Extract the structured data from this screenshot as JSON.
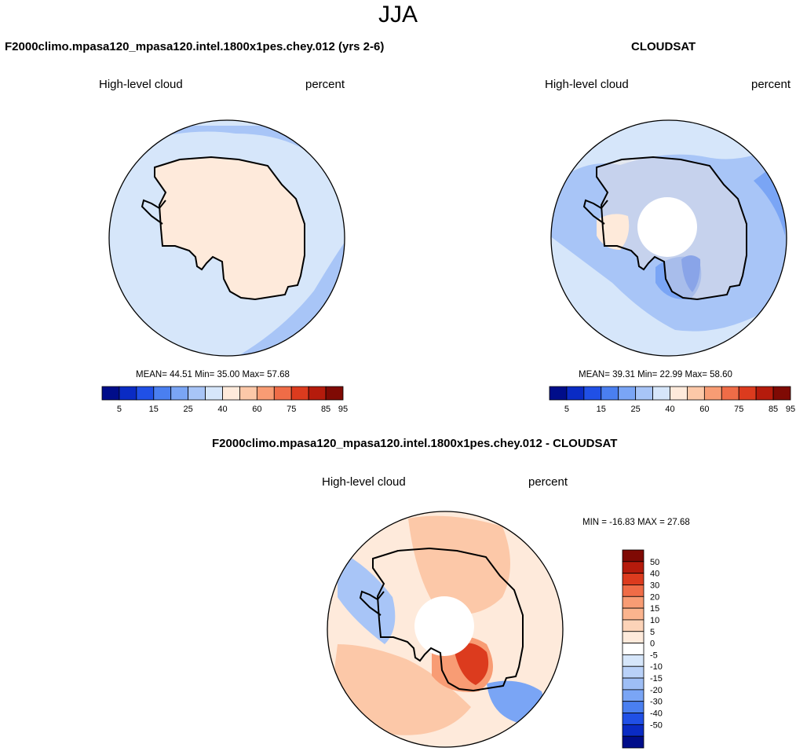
{
  "figure": {
    "season": "JJA"
  },
  "panels": [
    {
      "title": "F2000climo.mpasa120_mpasa120.intel.1800x1pes.chey.012 (yrs 2-6)",
      "variable": "High-level cloud",
      "units": "percent",
      "stats": "MEAN= 44.51  Min= 35.00  Max= 57.68"
    },
    {
      "title": "CLOUDSAT",
      "variable": "High-level cloud",
      "units": "percent",
      "stats": "MEAN= 39.31  Min= 22.99  Max= 58.60"
    },
    {
      "title": "F2000climo.mpasa120_mpasa120.intel.1800x1pes.chey.012 - CLOUDSAT",
      "variable": "High-level cloud",
      "units": "percent",
      "stats": "MIN = -16.83 MAX =  27.68"
    }
  ],
  "colorbar_field": {
    "colors": [
      "#000d8a",
      "#0a2bc4",
      "#2050e6",
      "#4a7ff0",
      "#7aa5f5",
      "#a8c5f7",
      "#d6e6fa",
      "#feeadb",
      "#fcc8a8",
      "#f89c74",
      "#ef6c47",
      "#dc3b1e",
      "#b51b0c",
      "#7f0a04"
    ],
    "labels": [
      "5",
      "15",
      "25",
      "40",
      "60",
      "75",
      "85",
      "95"
    ]
  },
  "colorbar_diff": {
    "colors": [
      "#7f0a04",
      "#b51b0c",
      "#dc3b1e",
      "#ef6c47",
      "#f89c74",
      "#fbb48e",
      "#fcd3b8",
      "#feeadb",
      "#ffffff",
      "#d6e6fa",
      "#b9d1f8",
      "#9ebef5",
      "#7aa5f5",
      "#4a7ff0",
      "#2050e6",
      "#0a2bc4",
      "#000d8a"
    ],
    "labels": [
      "50",
      "40",
      "30",
      "20",
      "15",
      "10",
      "5",
      "0",
      "-5",
      "-10",
      "-15",
      "-20",
      "-30",
      "-40",
      "-50"
    ]
  },
  "colors": {
    "land_model": "#feeadb",
    "ocean_light": "#d6e6fa",
    "ocean_mid": "#a8c5f7",
    "ocean_blue": "#7aa5f5",
    "deep_blue": "#4a7ff0",
    "warm_light": "#fcc8a8",
    "warm_mid": "#f89c74",
    "warm_strong": "#ef6c47",
    "warm_deep": "#dc3b1e",
    "coast": "#000000"
  }
}
